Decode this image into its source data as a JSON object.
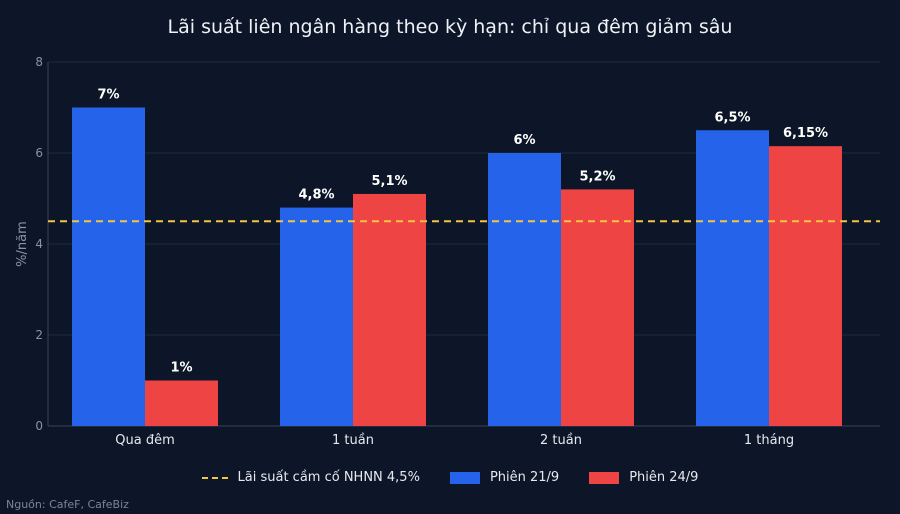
{
  "chart_data": {
    "type": "bar",
    "title": "Lãi suất liên ngân hàng theo kỳ hạn: chỉ qua đêm giảm sâu",
    "ylabel": "%/năm",
    "xlabel": "",
    "ylim": [
      0,
      8
    ],
    "yticks": [
      "0",
      "2",
      "4",
      "6",
      "8"
    ],
    "categories": [
      "Qua đêm",
      "1 tuần",
      "2 tuần",
      "1 tháng"
    ],
    "series": [
      {
        "name": "Phiên 21/9",
        "color": "#2563eb",
        "values": [
          7,
          4.8,
          6,
          6.5
        ],
        "labels": [
          "7%",
          "4,8%",
          "6%",
          "6,5%"
        ]
      },
      {
        "name": "Phiên 24/9",
        "color": "#ef4444",
        "values": [
          1,
          5.1,
          5.2,
          6.15
        ],
        "labels": [
          "1%",
          "5,1%",
          "5,2%",
          "6,15%"
        ]
      }
    ],
    "reference_line": {
      "name": "Lãi suất cầm cố NHNN 4,5%",
      "value": 4.5,
      "color": "#f4c542"
    },
    "grid": true,
    "legend_position": "bottom"
  },
  "source": "Nguồn: CafeF, CafeBiz"
}
